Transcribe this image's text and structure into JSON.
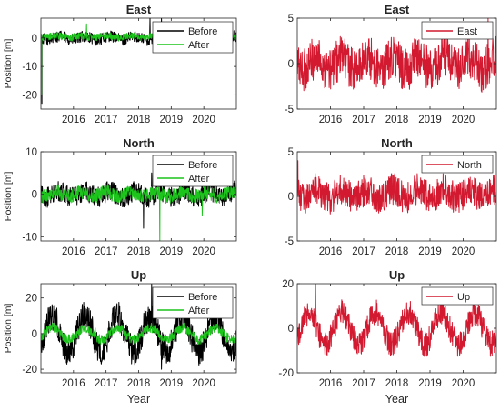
{
  "colors": {
    "before": "#000000",
    "after": "#1cc41c",
    "east_series": "#d2192f"
  },
  "chart_data": [
    {
      "type": "line",
      "title": "East",
      "xlabel": "",
      "ylabel": "Position [m]",
      "xlim": [
        2015.0,
        2021.0
      ],
      "ylim": [
        -25,
        7
      ],
      "x_ticks": [
        "2016",
        "2017",
        "2018",
        "2019",
        "2020"
      ],
      "y_ticks": [
        "0",
        "-10",
        "-20"
      ],
      "legend": "top-right",
      "series": [
        {
          "name": "Before",
          "color": "#000000",
          "amplitude": 2.5,
          "mean": 0,
          "spikes": [
            [
              2015.03,
              -23
            ],
            [
              2018.35,
              7
            ],
            [
              2018.7,
              7
            ]
          ]
        },
        {
          "name": "After",
          "color": "#1cc41c",
          "amplitude": 1.5,
          "mean": 0.5,
          "spikes": [
            [
              2015.02,
              -20
            ],
            [
              2016.4,
              5
            ]
          ]
        }
      ]
    },
    {
      "type": "line",
      "title": "East",
      "xlabel": "",
      "ylabel": "",
      "xlim": [
        2015.0,
        2021.0
      ],
      "ylim": [
        -5,
        5
      ],
      "x_ticks": [
        "2016",
        "2017",
        "2018",
        "2019",
        "2020"
      ],
      "y_ticks": [
        "5",
        "0",
        "-5"
      ],
      "legend": "top-right",
      "series": [
        {
          "name": "East",
          "color": "#d2192f",
          "amplitude": 3.0,
          "mean": 0,
          "spikes": [
            [
              2020.75,
              5
            ]
          ]
        }
      ]
    },
    {
      "type": "line",
      "title": "North",
      "xlabel": "",
      "ylabel": "Position [m]",
      "xlim": [
        2015.0,
        2021.0
      ],
      "ylim": [
        -11,
        10
      ],
      "x_ticks": [
        "2016",
        "2017",
        "2018",
        "2019",
        "2020"
      ],
      "y_ticks": [
        "10",
        "0",
        "-10"
      ],
      "legend": "top-right",
      "series": [
        {
          "name": "Before",
          "color": "#000000",
          "amplitude": 3.0,
          "mean": 0,
          "spikes": [
            [
              2018.15,
              -8
            ],
            [
              2018.4,
              5
            ]
          ]
        },
        {
          "name": "After",
          "color": "#1cc41c",
          "amplitude": 2.0,
          "mean": 0,
          "spikes": [
            [
              2018.65,
              -11
            ],
            [
              2019.95,
              -5
            ]
          ]
        }
      ]
    },
    {
      "type": "line",
      "title": "North",
      "xlabel": "",
      "ylabel": "",
      "xlim": [
        2015.0,
        2021.0
      ],
      "ylim": [
        -5,
        5
      ],
      "x_ticks": [
        "2016",
        "2017",
        "2018",
        "2019",
        "2020"
      ],
      "y_ticks": [
        "5",
        "0",
        "-5"
      ],
      "legend": "top-right",
      "series": [
        {
          "name": "North",
          "color": "#d2192f",
          "amplitude": 2.2,
          "mean": 0.3,
          "spikes": [
            [
              2015.02,
              4
            ]
          ]
        }
      ]
    },
    {
      "type": "line",
      "title": "Up",
      "xlabel": "Year",
      "ylabel": "Position [m]",
      "xlim": [
        2015.0,
        2021.0
      ],
      "ylim": [
        -22,
        28
      ],
      "x_ticks": [
        "2016",
        "2017",
        "2018",
        "2019",
        "2020"
      ],
      "y_ticks": [
        "20",
        "0",
        "-20"
      ],
      "legend": "top-right",
      "series": [
        {
          "name": "Before",
          "color": "#000000",
          "amplitude": 18.0,
          "mean": 0,
          "spikes": [
            [
              2018.4,
              28
            ],
            [
              2018.7,
              -20
            ]
          ]
        },
        {
          "name": "After",
          "color": "#1cc41c",
          "amplitude": 6.0,
          "mean": 0,
          "spikes": []
        }
      ]
    },
    {
      "type": "line",
      "title": "Up",
      "xlabel": "Year",
      "ylabel": "",
      "xlim": [
        2015.0,
        2021.0
      ],
      "ylim": [
        -20,
        20
      ],
      "x_ticks": [
        "2016",
        "2017",
        "2018",
        "2019",
        "2020"
      ],
      "y_ticks": [
        "20",
        "0",
        "-20"
      ],
      "legend": "top-right",
      "series": [
        {
          "name": "Up",
          "color": "#d2192f",
          "amplitude": 13.0,
          "mean": 0,
          "spikes": [
            [
              2015.55,
              20
            ]
          ]
        }
      ]
    }
  ]
}
